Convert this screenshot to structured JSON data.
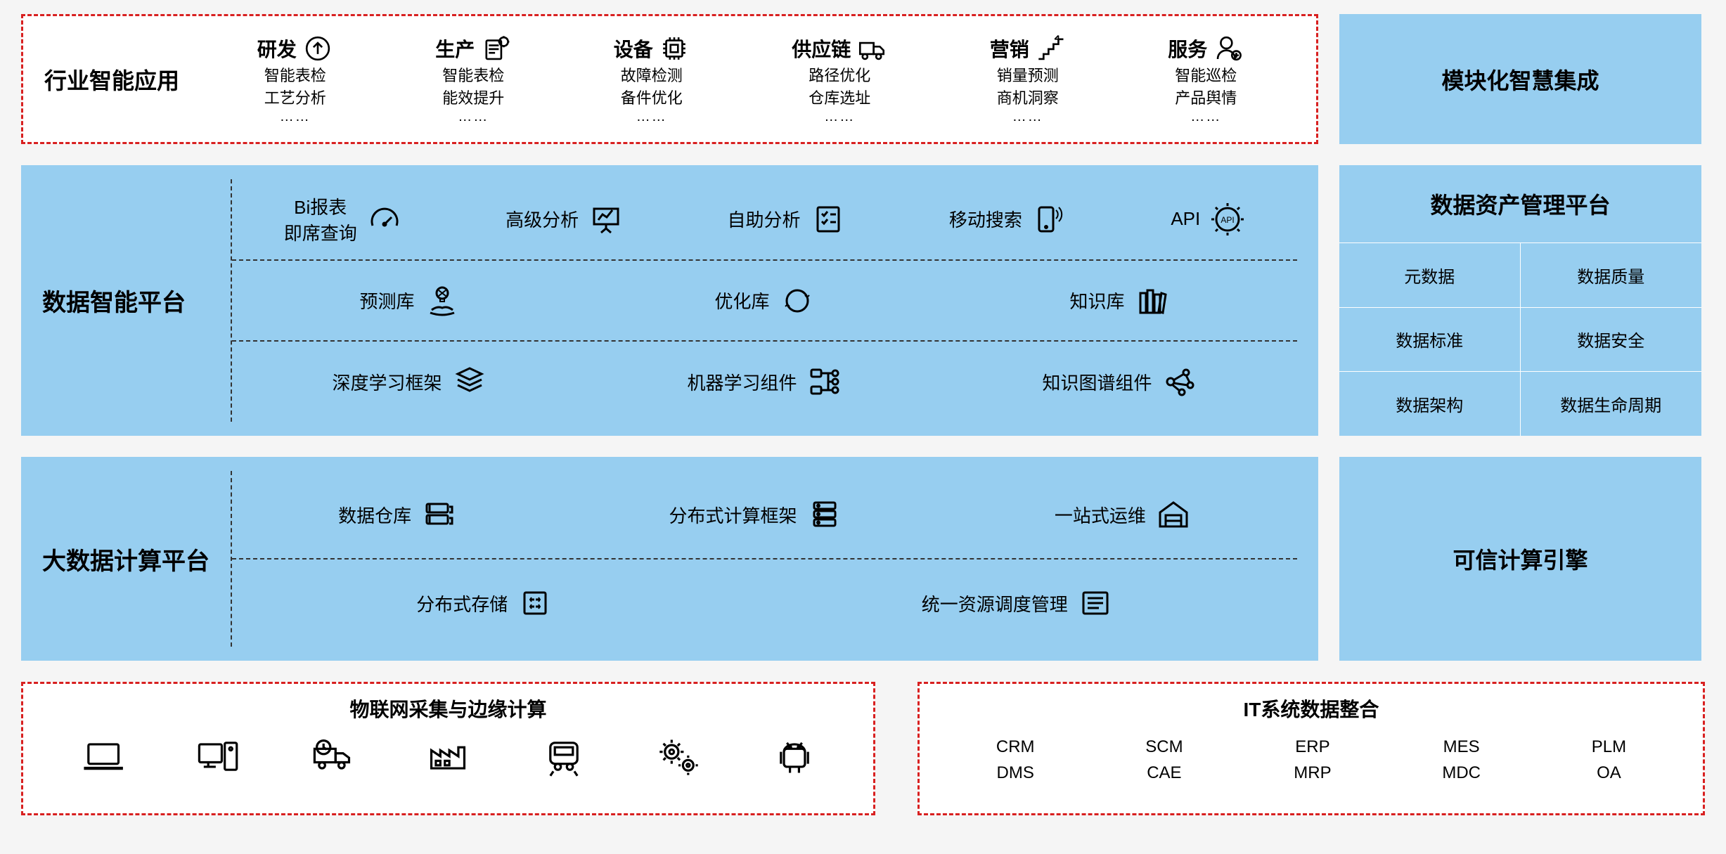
{
  "colors": {
    "blue": "#97cef0",
    "dashed_border": "#d82020",
    "stroke": "#000000",
    "bg": "#f5f5f5"
  },
  "row1": {
    "title": "行业智能应用",
    "items": [
      {
        "title": "研发",
        "sub1": "智能表检",
        "sub2": "工艺分析",
        "icon": "arrow-up-circle-icon"
      },
      {
        "title": "生产",
        "sub1": "智能表检",
        "sub2": "能效提升",
        "icon": "gear-doc-icon"
      },
      {
        "title": "设备",
        "sub1": "故障检测",
        "sub2": "备件优化",
        "icon": "chip-icon"
      },
      {
        "title": "供应链",
        "sub1": "路径优化",
        "sub2": "仓库选址",
        "icon": "truck-icon"
      },
      {
        "title": "营销",
        "sub1": "销量预测",
        "sub2": "商机洞察",
        "icon": "stairs-icon"
      },
      {
        "title": "服务",
        "sub1": "智能巡检",
        "sub2": "产品舆情",
        "icon": "person-plus-icon"
      }
    ],
    "right": "模块化智慧集成"
  },
  "row2": {
    "title": "数据智能平台",
    "rows": [
      [
        {
          "label": "Bi报表\n即席查询",
          "icon": "gauge-icon"
        },
        {
          "label": "高级分析",
          "icon": "presentation-icon"
        },
        {
          "label": "自助分析",
          "icon": "checklist-icon"
        },
        {
          "label": "移动搜索",
          "icon": "mobile-signal-icon"
        },
        {
          "label": "API",
          "icon": "api-gear-icon"
        }
      ],
      [
        {
          "label": "预测库",
          "icon": "bulb-hand-icon"
        },
        {
          "label": "优化库",
          "icon": "cycle-icon"
        },
        {
          "label": "知识库",
          "icon": "books-icon"
        }
      ],
      [
        {
          "label": "深度学习框架",
          "icon": "layers-icon"
        },
        {
          "label": "机器学习组件",
          "icon": "flow-icon"
        },
        {
          "label": "知识图谱组件",
          "icon": "graph-nodes-icon"
        }
      ]
    ],
    "right_title": "数据资产管理平台",
    "right_grid": [
      "元数据",
      "数据质量",
      "数据标准",
      "数据安全",
      "数据架构",
      "数据生命周期"
    ]
  },
  "row3": {
    "title": "大数据计算平台",
    "rows": [
      [
        {
          "label": "数据仓库",
          "icon": "notebooks-icon"
        },
        {
          "label": "分布式计算框架",
          "icon": "server-stack-icon"
        },
        {
          "label": "一站式运维",
          "icon": "warehouse-icon"
        }
      ],
      [
        {
          "label": "分布式存储",
          "icon": "storage-box-icon"
        },
        {
          "label": "统一资源调度管理",
          "icon": "list-lines-icon"
        }
      ]
    ],
    "right": "可信计算引擎"
  },
  "row4": {
    "left_title": "物联网采集与边缘计算",
    "left_icons": [
      "laptop-icon",
      "desktop-pc-icon",
      "clock-truck-icon",
      "factory-icon",
      "train-icon",
      "gears-icon",
      "android-icon"
    ],
    "right_title": "IT系统数据整合",
    "systems": [
      {
        "a": "CRM",
        "b": "DMS"
      },
      {
        "a": "SCM",
        "b": "CAE"
      },
      {
        "a": "ERP",
        "b": "MRP"
      },
      {
        "a": "MES",
        "b": "MDC"
      },
      {
        "a": "PLM",
        "b": "OA"
      }
    ]
  }
}
